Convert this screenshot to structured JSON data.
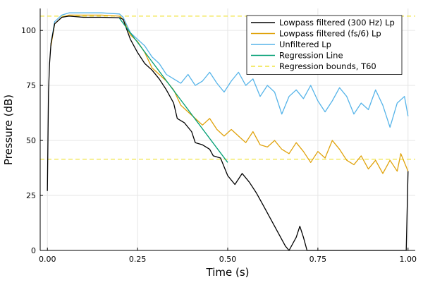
{
  "chart_data": {
    "type": "line",
    "title": "",
    "xlabel": "Time (s)",
    "ylabel": "Pressure (dB)",
    "xlim": [
      -0.02,
      1.02
    ],
    "ylim": [
      0,
      110
    ],
    "x_ticks": [
      0.0,
      0.25,
      0.5,
      0.75,
      1.0
    ],
    "x_tick_labels": [
      "0.00",
      "0.25",
      "0.50",
      "0.75",
      "1.00"
    ],
    "y_ticks": [
      0,
      25,
      50,
      75,
      100
    ],
    "y_tick_labels": [
      "0",
      "25",
      "50",
      "75",
      "100"
    ],
    "grid": true,
    "legend_position": "top-right",
    "series": [
      {
        "name": "Lowpass filtered (300 Hz) Lp",
        "color": "#000000",
        "dash": "solid",
        "points": [
          [
            0.0,
            27
          ],
          [
            0.003,
            72
          ],
          [
            0.006,
            85
          ],
          [
            0.01,
            94
          ],
          [
            0.02,
            103
          ],
          [
            0.04,
            106
          ],
          [
            0.06,
            106.5
          ],
          [
            0.1,
            106
          ],
          [
            0.15,
            106
          ],
          [
            0.2,
            105.8
          ],
          [
            0.21,
            105
          ],
          [
            0.23,
            96
          ],
          [
            0.25,
            90
          ],
          [
            0.27,
            85
          ],
          [
            0.29,
            82
          ],
          [
            0.31,
            78
          ],
          [
            0.33,
            73
          ],
          [
            0.35,
            67
          ],
          [
            0.36,
            60
          ],
          [
            0.38,
            58
          ],
          [
            0.4,
            54
          ],
          [
            0.41,
            49
          ],
          [
            0.43,
            48
          ],
          [
            0.45,
            46
          ],
          [
            0.46,
            43
          ],
          [
            0.48,
            42
          ],
          [
            0.5,
            34
          ],
          [
            0.52,
            30
          ],
          [
            0.54,
            35
          ],
          [
            0.56,
            31
          ],
          [
            0.58,
            26
          ],
          [
            0.6,
            20
          ],
          [
            0.62,
            14
          ],
          [
            0.64,
            8
          ],
          [
            0.66,
            2
          ],
          [
            0.67,
            0
          ],
          [
            0.69,
            6
          ],
          [
            0.7,
            11
          ],
          [
            0.71,
            6
          ],
          [
            0.72,
            0
          ],
          [
            0.995,
            0
          ],
          [
            1.0,
            36
          ]
        ]
      },
      {
        "name": "Lowpass filtered (fs/6) Lp",
        "color": "#e0a20b",
        "dash": "solid",
        "points": [
          [
            0.01,
            93
          ],
          [
            0.02,
            103
          ],
          [
            0.04,
            106
          ],
          [
            0.06,
            107
          ],
          [
            0.1,
            107
          ],
          [
            0.15,
            107
          ],
          [
            0.2,
            106.5
          ],
          [
            0.21,
            105
          ],
          [
            0.23,
            98
          ],
          [
            0.25,
            95
          ],
          [
            0.27,
            90
          ],
          [
            0.29,
            83
          ],
          [
            0.31,
            80
          ],
          [
            0.33,
            77
          ],
          [
            0.35,
            73
          ],
          [
            0.37,
            66
          ],
          [
            0.39,
            63
          ],
          [
            0.41,
            60
          ],
          [
            0.43,
            57
          ],
          [
            0.45,
            60
          ],
          [
            0.47,
            55
          ],
          [
            0.49,
            52
          ],
          [
            0.51,
            55
          ],
          [
            0.53,
            52
          ],
          [
            0.55,
            49
          ],
          [
            0.57,
            54
          ],
          [
            0.59,
            48
          ],
          [
            0.61,
            47
          ],
          [
            0.63,
            50
          ],
          [
            0.65,
            46
          ],
          [
            0.67,
            44
          ],
          [
            0.69,
            49
          ],
          [
            0.71,
            45
          ],
          [
            0.73,
            40
          ],
          [
            0.75,
            45
          ],
          [
            0.77,
            42
          ],
          [
            0.79,
            50
          ],
          [
            0.81,
            46
          ],
          [
            0.83,
            41
          ],
          [
            0.85,
            39
          ],
          [
            0.87,
            43
          ],
          [
            0.89,
            37
          ],
          [
            0.91,
            41
          ],
          [
            0.93,
            35
          ],
          [
            0.95,
            41
          ],
          [
            0.97,
            36
          ],
          [
            0.98,
            44
          ],
          [
            1.0,
            36
          ]
        ]
      },
      {
        "name": "Unfiltered Lp",
        "color": "#56b4e9",
        "dash": "solid",
        "points": [
          [
            0.01,
            94
          ],
          [
            0.02,
            104
          ],
          [
            0.04,
            107
          ],
          [
            0.06,
            108
          ],
          [
            0.1,
            108
          ],
          [
            0.15,
            108
          ],
          [
            0.2,
            107.5
          ],
          [
            0.21,
            106
          ],
          [
            0.23,
            99
          ],
          [
            0.25,
            96
          ],
          [
            0.27,
            93
          ],
          [
            0.29,
            88
          ],
          [
            0.31,
            85
          ],
          [
            0.33,
            80
          ],
          [
            0.35,
            78
          ],
          [
            0.37,
            76
          ],
          [
            0.39,
            80
          ],
          [
            0.41,
            75
          ],
          [
            0.43,
            77
          ],
          [
            0.45,
            81
          ],
          [
            0.47,
            76
          ],
          [
            0.49,
            72
          ],
          [
            0.51,
            77
          ],
          [
            0.53,
            81
          ],
          [
            0.55,
            75
          ],
          [
            0.57,
            78
          ],
          [
            0.59,
            70
          ],
          [
            0.61,
            75
          ],
          [
            0.63,
            72
          ],
          [
            0.65,
            62
          ],
          [
            0.67,
            70
          ],
          [
            0.69,
            73
          ],
          [
            0.71,
            69
          ],
          [
            0.73,
            75
          ],
          [
            0.75,
            68
          ],
          [
            0.77,
            63
          ],
          [
            0.79,
            68
          ],
          [
            0.81,
            74
          ],
          [
            0.83,
            70
          ],
          [
            0.85,
            62
          ],
          [
            0.87,
            67
          ],
          [
            0.89,
            64
          ],
          [
            0.91,
            73
          ],
          [
            0.93,
            66
          ],
          [
            0.95,
            56
          ],
          [
            0.97,
            67
          ],
          [
            0.99,
            70
          ],
          [
            1.0,
            61
          ]
        ]
      },
      {
        "name": "Regression Line",
        "color": "#009e73",
        "dash": "solid",
        "points": [
          [
            0.2,
            105.5
          ],
          [
            0.5,
            40
          ]
        ]
      },
      {
        "name": "Regression bounds, T60",
        "color": "#f0e442",
        "dash": "dashed",
        "points": [
          [
            -0.02,
            106.5
          ],
          [
            1.02,
            106.5
          ]
        ],
        "extra_segments": [
          [
            [
              -0.02,
              41.5
            ],
            [
              1.02,
              41.5
            ]
          ]
        ]
      }
    ]
  }
}
